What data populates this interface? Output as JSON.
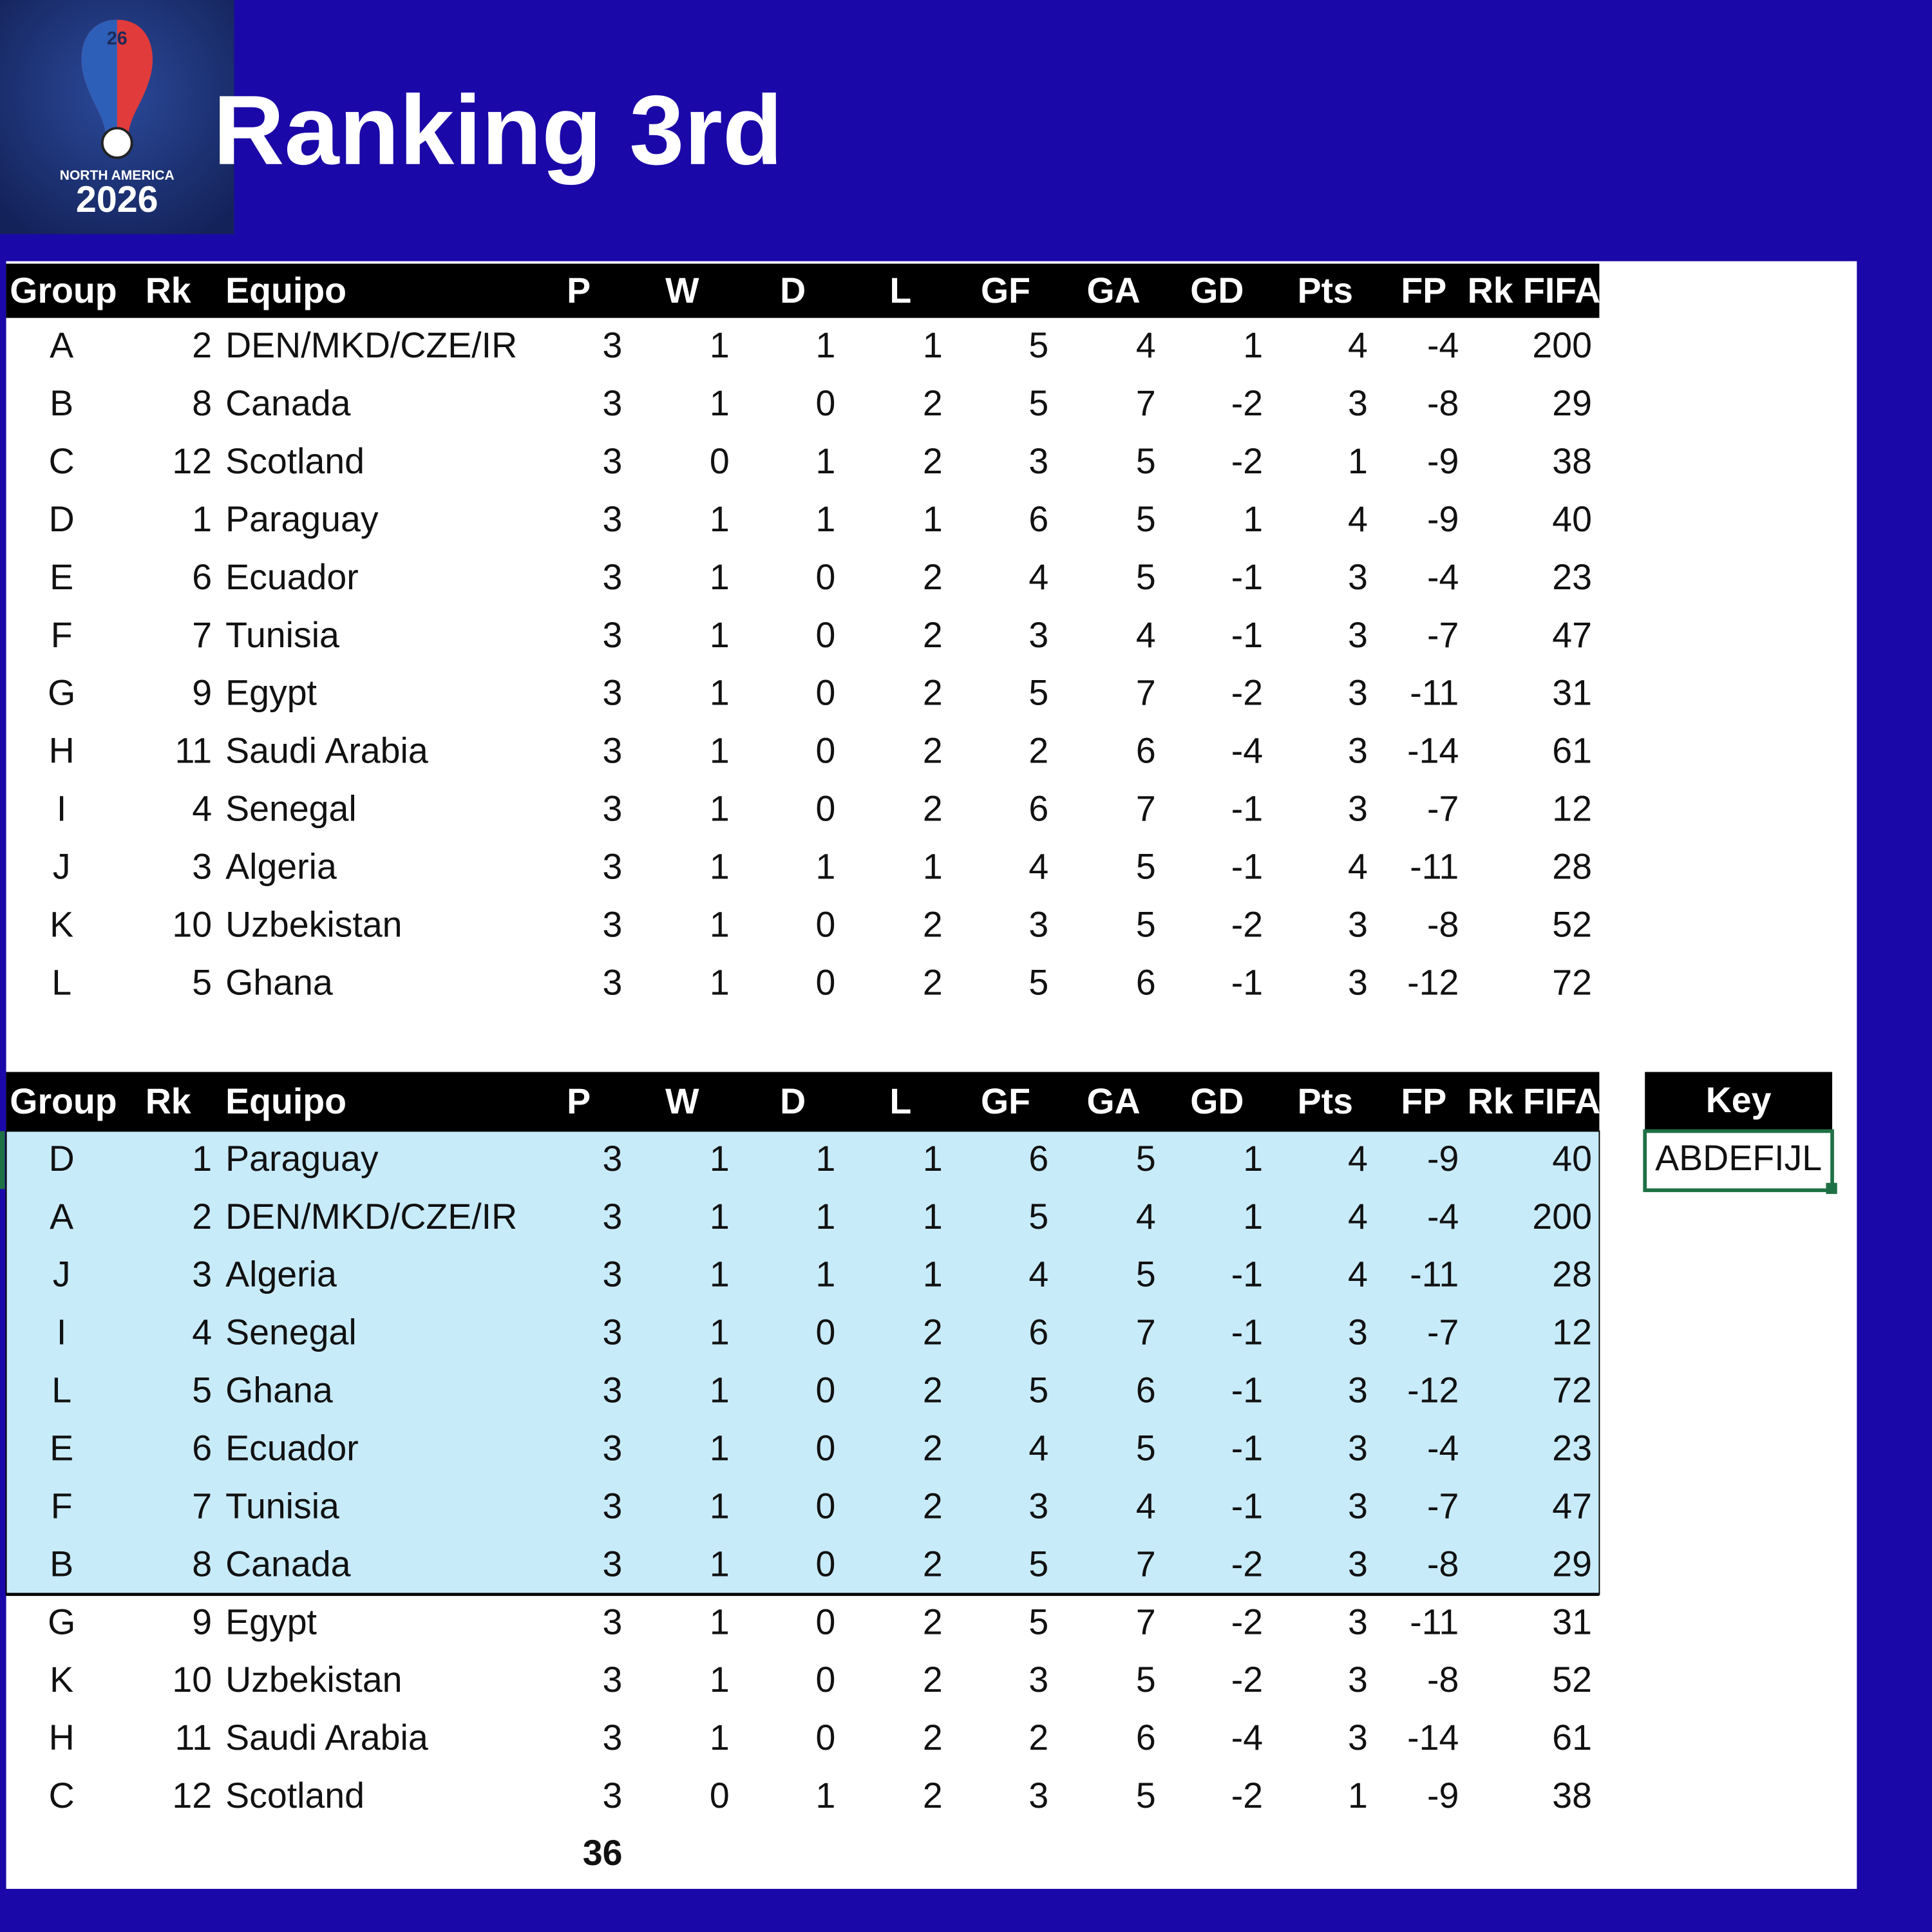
{
  "header": {
    "title": "Ranking 3rd",
    "logo": {
      "badge": "26",
      "region": "NORTH AMERICA",
      "year": "2026"
    }
  },
  "tables": [
    {
      "columns": [
        "Group",
        "Rk",
        "Equipo",
        "P",
        "W",
        "D",
        "L",
        "GF",
        "GA",
        "GD",
        "Pts",
        "FP",
        "Rk FIFA"
      ],
      "rows": [
        [
          "A",
          2,
          "DEN/MKD/CZE/IR",
          3,
          1,
          1,
          1,
          5,
          4,
          1,
          4,
          -4,
          200
        ],
        [
          "B",
          8,
          "Canada",
          3,
          1,
          0,
          2,
          5,
          7,
          -2,
          3,
          -8,
          29
        ],
        [
          "C",
          12,
          "Scotland",
          3,
          0,
          1,
          2,
          3,
          5,
          -2,
          1,
          -9,
          38
        ],
        [
          "D",
          1,
          "Paraguay",
          3,
          1,
          1,
          1,
          6,
          5,
          1,
          4,
          -9,
          40
        ],
        [
          "E",
          6,
          "Ecuador",
          3,
          1,
          0,
          2,
          4,
          5,
          -1,
          3,
          -4,
          23
        ],
        [
          "F",
          7,
          "Tunisia",
          3,
          1,
          0,
          2,
          3,
          4,
          -1,
          3,
          -7,
          47
        ],
        [
          "G",
          9,
          "Egypt",
          3,
          1,
          0,
          2,
          5,
          7,
          -2,
          3,
          -11,
          31
        ],
        [
          "H",
          11,
          "Saudi Arabia",
          3,
          1,
          0,
          2,
          2,
          6,
          -4,
          3,
          -14,
          61
        ],
        [
          "I",
          4,
          "Senegal",
          3,
          1,
          0,
          2,
          6,
          7,
          -1,
          3,
          -7,
          12
        ],
        [
          "J",
          3,
          "Algeria",
          3,
          1,
          1,
          1,
          4,
          5,
          -1,
          4,
          -11,
          28
        ],
        [
          "K",
          10,
          "Uzbekistan",
          3,
          1,
          0,
          2,
          3,
          5,
          -2,
          3,
          -8,
          52
        ],
        [
          "L",
          5,
          "Ghana",
          3,
          1,
          0,
          2,
          5,
          6,
          -1,
          3,
          -12,
          72
        ]
      ]
    },
    {
      "columns": [
        "Group",
        "Rk",
        "Equipo",
        "P",
        "W",
        "D",
        "L",
        "GF",
        "GA",
        "GD",
        "Pts",
        "FP",
        "Rk FIFA"
      ],
      "rows": [
        [
          "D",
          1,
          "Paraguay",
          3,
          1,
          1,
          1,
          6,
          5,
          1,
          4,
          -9,
          40
        ],
        [
          "A",
          2,
          "DEN/MKD/CZE/IR",
          3,
          1,
          1,
          1,
          5,
          4,
          1,
          4,
          -4,
          200
        ],
        [
          "J",
          3,
          "Algeria",
          3,
          1,
          1,
          1,
          4,
          5,
          -1,
          4,
          -11,
          28
        ],
        [
          "I",
          4,
          "Senegal",
          3,
          1,
          0,
          2,
          6,
          7,
          -1,
          3,
          -7,
          12
        ],
        [
          "L",
          5,
          "Ghana",
          3,
          1,
          0,
          2,
          5,
          6,
          -1,
          3,
          -12,
          72
        ],
        [
          "E",
          6,
          "Ecuador",
          3,
          1,
          0,
          2,
          4,
          5,
          -1,
          3,
          -4,
          23
        ],
        [
          "F",
          7,
          "Tunisia",
          3,
          1,
          0,
          2,
          3,
          4,
          -1,
          3,
          -7,
          47
        ],
        [
          "B",
          8,
          "Canada",
          3,
          1,
          0,
          2,
          5,
          7,
          -2,
          3,
          -8,
          29
        ],
        [
          "G",
          9,
          "Egypt",
          3,
          1,
          0,
          2,
          5,
          7,
          -2,
          3,
          -11,
          31
        ],
        [
          "K",
          10,
          "Uzbekistan",
          3,
          1,
          0,
          2,
          3,
          5,
          -2,
          3,
          -8,
          52
        ],
        [
          "H",
          11,
          "Saudi Arabia",
          3,
          1,
          0,
          2,
          2,
          6,
          -4,
          3,
          -14,
          61
        ],
        [
          "C",
          12,
          "Scotland",
          3,
          0,
          1,
          2,
          3,
          5,
          -2,
          1,
          -9,
          38
        ]
      ]
    }
  ],
  "key": {
    "header": "Key",
    "value": "ABDEFIJL"
  },
  "total": "36"
}
